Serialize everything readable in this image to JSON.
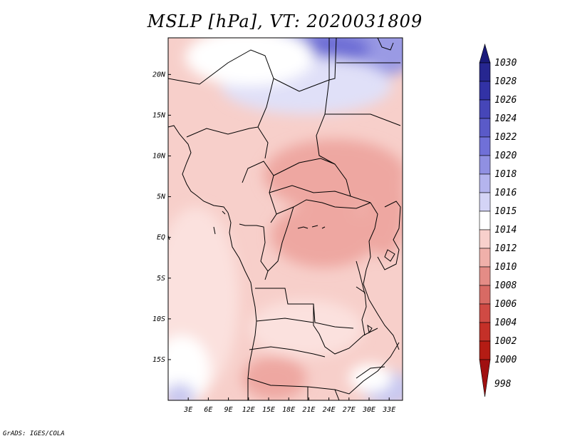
{
  "title": "MSLP [hPa], VT: 2020031809",
  "footer": "GrADS: IGES/COLA",
  "map": {
    "lat_ticks": [
      "20N",
      "15N",
      "10N",
      "5N",
      "EQ",
      "5S",
      "10S",
      "15S"
    ],
    "lon_ticks": [
      "3E",
      "6E",
      "9E",
      "12E",
      "15E",
      "18E",
      "21E",
      "24E",
      "27E",
      "30E",
      "33E"
    ],
    "lat_range": [
      -20,
      24.5
    ],
    "lon_range": [
      0,
      35
    ]
  },
  "colorbar": {
    "levels": [
      "1030",
      "1028",
      "1026",
      "1024",
      "1022",
      "1020",
      "1018",
      "1016",
      "1015",
      "1014",
      "1012",
      "1010",
      "1008",
      "1006",
      "1004",
      "1002",
      "1000",
      "998"
    ],
    "colors": [
      "#1a1a7a",
      "#262690",
      "#3232a5",
      "#4646b8",
      "#5a5ac8",
      "#7070d8",
      "#9090e2",
      "#b4b4ee",
      "#d4d4f6",
      "#ffffff",
      "#f8d0cc",
      "#f0b0aa",
      "#e48c86",
      "#d86a64",
      "#d04a44",
      "#c43028",
      "#b41c14",
      "#a01010"
    ]
  }
}
